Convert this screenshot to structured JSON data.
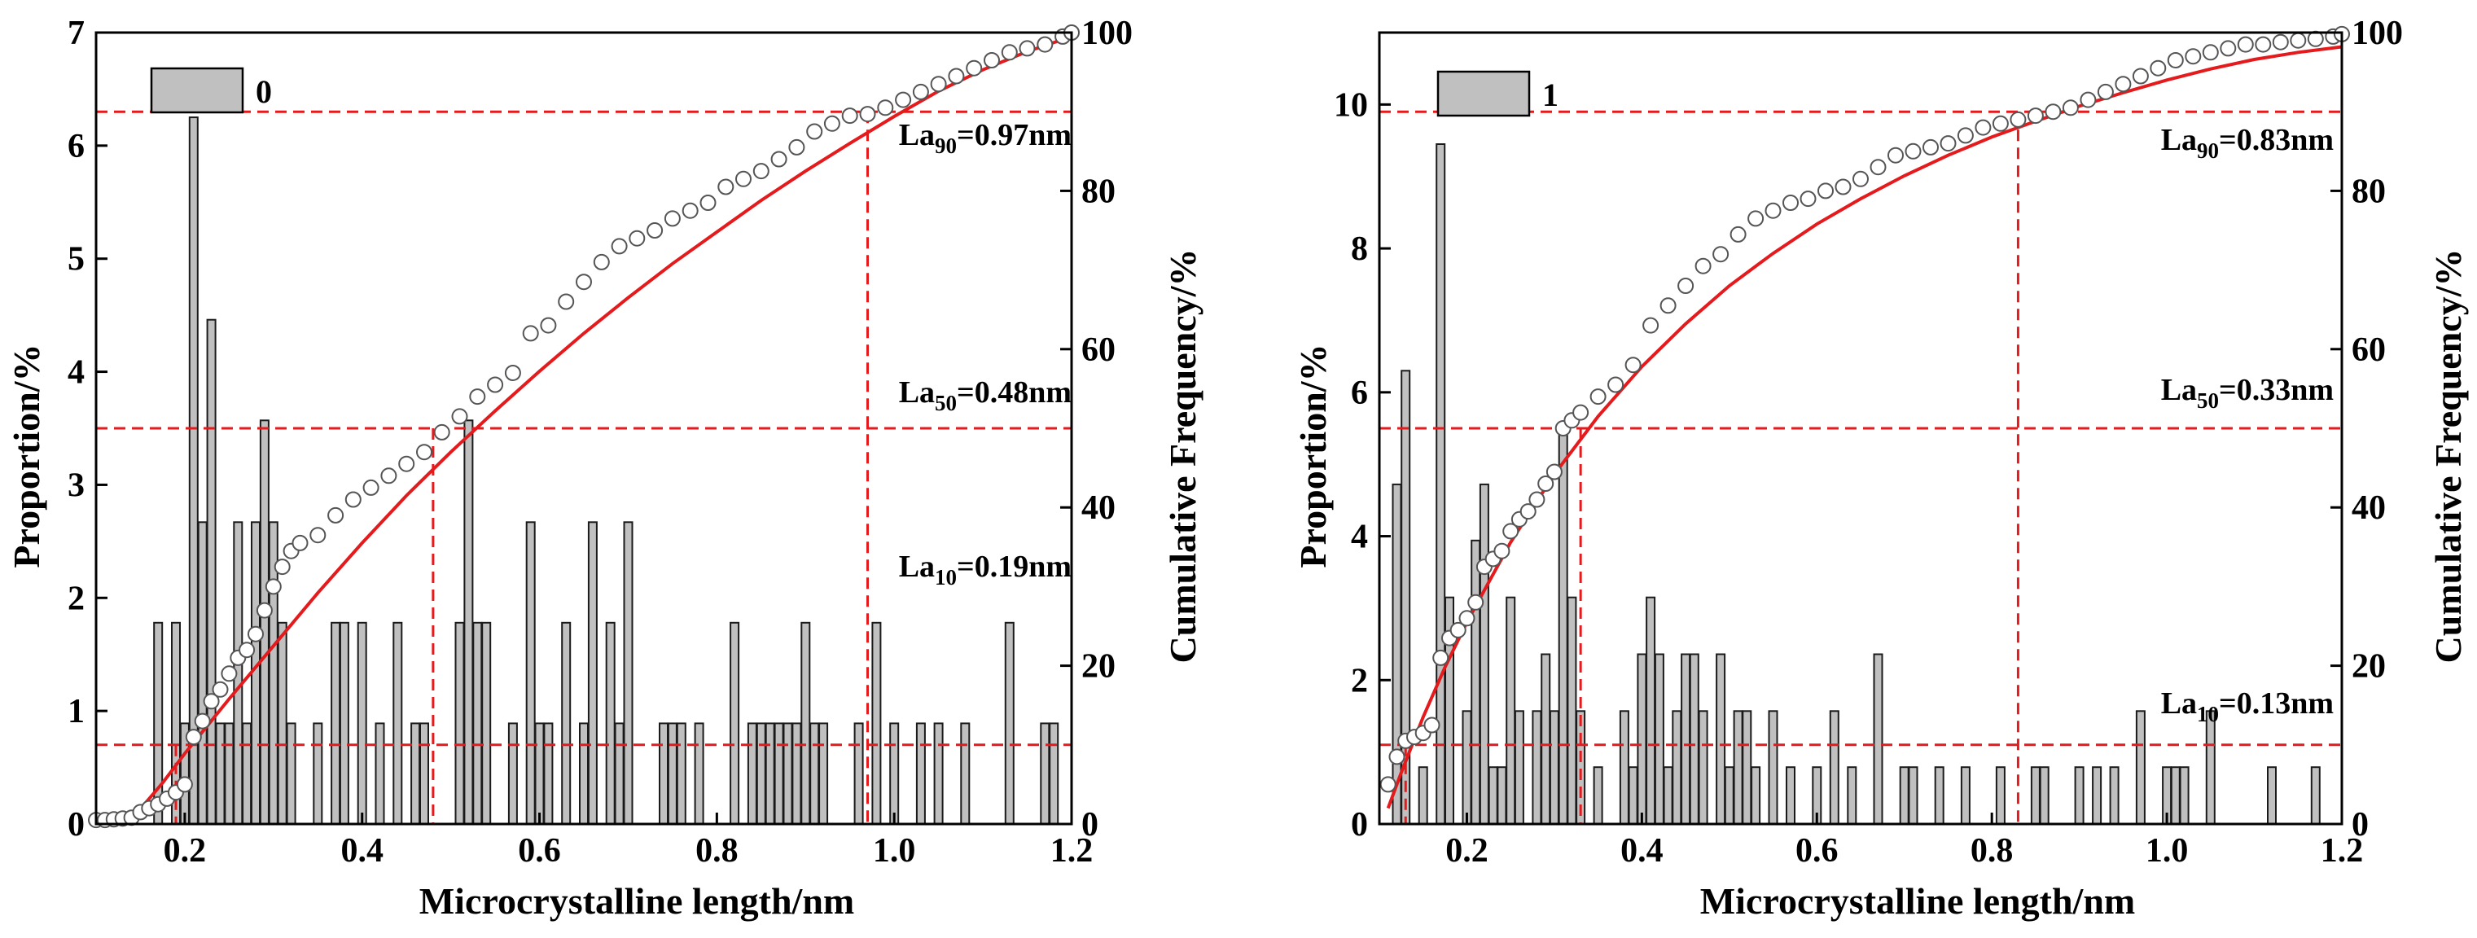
{
  "colors": {
    "bar_fill": "#c0c0c0",
    "bar_stroke": "#1a1a1a",
    "fit_line": "#e41a1c",
    "ref_line": "#e41a1c",
    "marker_fill": "#ffffff",
    "marker_stroke": "#555555"
  },
  "chart_data": [
    {
      "type": "bar",
      "legend": "0",
      "xlabel": "Microcrystalline length/nm",
      "ylabel_left": "Proportion/%",
      "ylabel_right": "Cumulative Frequency/%",
      "xlim": [
        0.1,
        1.2
      ],
      "ylim_left": [
        0,
        7
      ],
      "ylim_right": [
        0,
        100
      ],
      "x_ticks": [
        "0.2",
        "0.4",
        "0.6",
        "0.8",
        "1.0",
        "1.2"
      ],
      "y_ticks_left": [
        "0",
        "1",
        "2",
        "3",
        "4",
        "5",
        "6",
        "7"
      ],
      "y_ticks_right": [
        "0",
        "20",
        "40",
        "60",
        "80",
        "100"
      ],
      "annotations": [
        {
          "main": "La",
          "sub": "90",
          "rest": "=0.97nm",
          "x_value": 0.97,
          "y_cumulative": 90
        },
        {
          "main": "La",
          "sub": "50",
          "rest": "=0.48nm",
          "x_value": 0.48,
          "y_cumulative": 50
        },
        {
          "main": "La",
          "sub": "10",
          "rest": "=0.19nm",
          "x_value": 0.19,
          "y_cumulative": 10
        }
      ],
      "bars": [
        [
          0.17,
          1.78
        ],
        [
          0.19,
          1.78
        ],
        [
          0.2,
          0.89
        ],
        [
          0.21,
          6.25
        ],
        [
          0.22,
          2.67
        ],
        [
          0.23,
          4.46
        ],
        [
          0.24,
          0.89
        ],
        [
          0.25,
          0.89
        ],
        [
          0.26,
          2.67
        ],
        [
          0.27,
          0.89
        ],
        [
          0.28,
          2.67
        ],
        [
          0.29,
          3.57
        ],
        [
          0.3,
          2.67
        ],
        [
          0.31,
          1.78
        ],
        [
          0.32,
          0.89
        ],
        [
          0.35,
          0.89
        ],
        [
          0.37,
          1.78
        ],
        [
          0.38,
          1.78
        ],
        [
          0.4,
          1.78
        ],
        [
          0.42,
          0.89
        ],
        [
          0.44,
          1.78
        ],
        [
          0.46,
          0.89
        ],
        [
          0.47,
          0.89
        ],
        [
          0.51,
          1.78
        ],
        [
          0.52,
          3.57
        ],
        [
          0.53,
          1.78
        ],
        [
          0.54,
          1.78
        ],
        [
          0.57,
          0.89
        ],
        [
          0.59,
          2.67
        ],
        [
          0.6,
          0.89
        ],
        [
          0.61,
          0.89
        ],
        [
          0.63,
          1.78
        ],
        [
          0.65,
          0.89
        ],
        [
          0.66,
          2.67
        ],
        [
          0.68,
          1.78
        ],
        [
          0.69,
          0.89
        ],
        [
          0.7,
          2.67
        ],
        [
          0.74,
          0.89
        ],
        [
          0.75,
          0.89
        ],
        [
          0.76,
          0.89
        ],
        [
          0.78,
          0.89
        ],
        [
          0.82,
          1.78
        ],
        [
          0.84,
          0.89
        ],
        [
          0.85,
          0.89
        ],
        [
          0.86,
          0.89
        ],
        [
          0.87,
          0.89
        ],
        [
          0.88,
          0.89
        ],
        [
          0.89,
          0.89
        ],
        [
          0.9,
          1.78
        ],
        [
          0.91,
          0.89
        ],
        [
          0.92,
          0.89
        ],
        [
          0.96,
          0.89
        ],
        [
          0.98,
          1.78
        ],
        [
          1.0,
          0.89
        ],
        [
          1.03,
          0.89
        ],
        [
          1.05,
          0.89
        ],
        [
          1.08,
          0.89
        ],
        [
          1.13,
          1.78
        ],
        [
          1.17,
          0.89
        ],
        [
          1.18,
          0.89
        ]
      ],
      "cumulative_points": [
        [
          0.1,
          0.5
        ],
        [
          0.11,
          0.5
        ],
        [
          0.12,
          0.6
        ],
        [
          0.13,
          0.7
        ],
        [
          0.14,
          0.8
        ],
        [
          0.15,
          1.5
        ],
        [
          0.16,
          2.0
        ],
        [
          0.17,
          2.5
        ],
        [
          0.18,
          3.2
        ],
        [
          0.19,
          4.0
        ],
        [
          0.2,
          5.0
        ],
        [
          0.21,
          11.0
        ],
        [
          0.22,
          13.0
        ],
        [
          0.23,
          15.5
        ],
        [
          0.24,
          17.0
        ],
        [
          0.25,
          19.0
        ],
        [
          0.26,
          21.0
        ],
        [
          0.27,
          22.0
        ],
        [
          0.28,
          24.0
        ],
        [
          0.29,
          27.0
        ],
        [
          0.3,
          30.0
        ],
        [
          0.31,
          32.5
        ],
        [
          0.32,
          34.5
        ],
        [
          0.33,
          35.5
        ],
        [
          0.35,
          36.5
        ],
        [
          0.37,
          39.0
        ],
        [
          0.39,
          41.0
        ],
        [
          0.41,
          42.5
        ],
        [
          0.43,
          44.0
        ],
        [
          0.45,
          45.5
        ],
        [
          0.47,
          47.0
        ],
        [
          0.49,
          49.5
        ],
        [
          0.51,
          51.5
        ],
        [
          0.53,
          54.0
        ],
        [
          0.55,
          55.5
        ],
        [
          0.57,
          57.0
        ],
        [
          0.59,
          62.0
        ],
        [
          0.61,
          63.0
        ],
        [
          0.63,
          66.0
        ],
        [
          0.65,
          68.5
        ],
        [
          0.67,
          71.0
        ],
        [
          0.69,
          73.0
        ],
        [
          0.71,
          74.0
        ],
        [
          0.73,
          75.0
        ],
        [
          0.75,
          76.5
        ],
        [
          0.77,
          77.5
        ],
        [
          0.79,
          78.5
        ],
        [
          0.81,
          80.5
        ],
        [
          0.83,
          81.5
        ],
        [
          0.85,
          82.5
        ],
        [
          0.87,
          84.0
        ],
        [
          0.89,
          85.5
        ],
        [
          0.91,
          87.5
        ],
        [
          0.93,
          88.5
        ],
        [
          0.95,
          89.5
        ],
        [
          0.97,
          89.7
        ],
        [
          0.99,
          90.5
        ],
        [
          1.01,
          91.5
        ],
        [
          1.03,
          92.5
        ],
        [
          1.05,
          93.5
        ],
        [
          1.07,
          94.5
        ],
        [
          1.09,
          95.5
        ],
        [
          1.11,
          96.5
        ],
        [
          1.13,
          97.5
        ],
        [
          1.15,
          98.0
        ],
        [
          1.17,
          98.5
        ],
        [
          1.19,
          99.5
        ],
        [
          1.2,
          100.0
        ]
      ],
      "fit_curve": [
        [
          0.135,
          0.0
        ],
        [
          0.15,
          1.9
        ],
        [
          0.175,
          5.2
        ],
        [
          0.2,
          8.9
        ],
        [
          0.25,
          15.8
        ],
        [
          0.3,
          22.5
        ],
        [
          0.35,
          29.2
        ],
        [
          0.4,
          35.5
        ],
        [
          0.45,
          41.5
        ],
        [
          0.5,
          47.0
        ],
        [
          0.55,
          52.2
        ],
        [
          0.6,
          57.2
        ],
        [
          0.65,
          62.0
        ],
        [
          0.7,
          66.5
        ],
        [
          0.75,
          70.8
        ],
        [
          0.8,
          74.8
        ],
        [
          0.85,
          78.8
        ],
        [
          0.9,
          82.5
        ],
        [
          0.95,
          86.0
        ],
        [
          1.0,
          89.4
        ],
        [
          1.05,
          92.6
        ],
        [
          1.1,
          95.3
        ],
        [
          1.15,
          97.6
        ],
        [
          1.2,
          99.5
        ]
      ]
    },
    {
      "type": "bar",
      "legend": "1",
      "xlabel": "Microcrystalline length/nm",
      "ylabel_left": "Proportion/%",
      "ylabel_right": "Cumulative Frequency/%",
      "xlim": [
        0.1,
        1.2
      ],
      "ylim_left": [
        0,
        11
      ],
      "ylim_right": [
        0,
        100
      ],
      "x_ticks": [
        "0.2",
        "0.4",
        "0.6",
        "0.8",
        "1.0",
        "1.2"
      ],
      "y_ticks_left": [
        "0",
        "2",
        "4",
        "6",
        "8",
        "10"
      ],
      "y_ticks_right": [
        "0",
        "20",
        "40",
        "60",
        "80",
        "100"
      ],
      "annotations": [
        {
          "main": "La",
          "sub": "90",
          "rest": "=0.83nm",
          "x_value": 0.83,
          "y_cumulative": 90
        },
        {
          "main": "La",
          "sub": "50",
          "rest": "=0.33nm",
          "x_value": 0.33,
          "y_cumulative": 50
        },
        {
          "main": "La",
          "sub": "10",
          "rest": "=0.13nm",
          "x_value": 0.13,
          "y_cumulative": 10
        }
      ],
      "bars": [
        [
          0.12,
          4.72
        ],
        [
          0.13,
          6.3
        ],
        [
          0.15,
          0.79
        ],
        [
          0.17,
          9.45
        ],
        [
          0.18,
          3.15
        ],
        [
          0.2,
          1.57
        ],
        [
          0.21,
          3.94
        ],
        [
          0.22,
          4.72
        ],
        [
          0.23,
          0.79
        ],
        [
          0.24,
          0.79
        ],
        [
          0.25,
          3.15
        ],
        [
          0.26,
          1.57
        ],
        [
          0.28,
          1.57
        ],
        [
          0.29,
          2.36
        ],
        [
          0.3,
          1.57
        ],
        [
          0.31,
          5.51
        ],
        [
          0.32,
          3.15
        ],
        [
          0.33,
          1.57
        ],
        [
          0.35,
          0.79
        ],
        [
          0.38,
          1.57
        ],
        [
          0.39,
          0.79
        ],
        [
          0.4,
          2.36
        ],
        [
          0.41,
          3.15
        ],
        [
          0.42,
          2.36
        ],
        [
          0.43,
          0.79
        ],
        [
          0.44,
          1.57
        ],
        [
          0.45,
          2.36
        ],
        [
          0.46,
          2.36
        ],
        [
          0.47,
          1.57
        ],
        [
          0.49,
          2.36
        ],
        [
          0.5,
          0.79
        ],
        [
          0.51,
          1.57
        ],
        [
          0.52,
          1.57
        ],
        [
          0.53,
          0.79
        ],
        [
          0.55,
          1.57
        ],
        [
          0.57,
          0.79
        ],
        [
          0.6,
          0.79
        ],
        [
          0.62,
          1.57
        ],
        [
          0.64,
          0.79
        ],
        [
          0.67,
          2.36
        ],
        [
          0.7,
          0.79
        ],
        [
          0.71,
          0.79
        ],
        [
          0.74,
          0.79
        ],
        [
          0.77,
          0.79
        ],
        [
          0.81,
          0.79
        ],
        [
          0.85,
          0.79
        ],
        [
          0.86,
          0.79
        ],
        [
          0.9,
          0.79
        ],
        [
          0.92,
          0.79
        ],
        [
          0.94,
          0.79
        ],
        [
          0.97,
          1.57
        ],
        [
          1.0,
          0.79
        ],
        [
          1.01,
          0.79
        ],
        [
          1.02,
          0.79
        ],
        [
          1.05,
          1.57
        ],
        [
          1.12,
          0.79
        ],
        [
          1.17,
          0.79
        ]
      ],
      "cumulative_points": [
        [
          0.11,
          5.0
        ],
        [
          0.12,
          8.5
        ],
        [
          0.13,
          10.5
        ],
        [
          0.14,
          11.0
        ],
        [
          0.15,
          11.5
        ],
        [
          0.16,
          12.5
        ],
        [
          0.17,
          21.0
        ],
        [
          0.18,
          23.5
        ],
        [
          0.19,
          24.5
        ],
        [
          0.2,
          26.0
        ],
        [
          0.21,
          28.0
        ],
        [
          0.22,
          32.5
        ],
        [
          0.23,
          33.5
        ],
        [
          0.24,
          34.5
        ],
        [
          0.25,
          37.0
        ],
        [
          0.26,
          38.5
        ],
        [
          0.27,
          39.5
        ],
        [
          0.28,
          41.0
        ],
        [
          0.29,
          43.0
        ],
        [
          0.3,
          44.5
        ],
        [
          0.31,
          50.0
        ],
        [
          0.32,
          51.0
        ],
        [
          0.33,
          52.0
        ],
        [
          0.35,
          54.0
        ],
        [
          0.37,
          55.5
        ],
        [
          0.39,
          58.0
        ],
        [
          0.41,
          63.0
        ],
        [
          0.43,
          65.5
        ],
        [
          0.45,
          68.0
        ],
        [
          0.47,
          70.5
        ],
        [
          0.49,
          72.0
        ],
        [
          0.51,
          74.5
        ],
        [
          0.53,
          76.5
        ],
        [
          0.55,
          77.5
        ],
        [
          0.57,
          78.5
        ],
        [
          0.59,
          79.0
        ],
        [
          0.61,
          80.0
        ],
        [
          0.63,
          80.5
        ],
        [
          0.65,
          81.5
        ],
        [
          0.67,
          83.0
        ],
        [
          0.69,
          84.5
        ],
        [
          0.71,
          85.0
        ],
        [
          0.73,
          85.5
        ],
        [
          0.75,
          86.0
        ],
        [
          0.77,
          87.0
        ],
        [
          0.79,
          88.0
        ],
        [
          0.81,
          88.5
        ],
        [
          0.83,
          89.0
        ],
        [
          0.85,
          89.5
        ],
        [
          0.87,
          90.0
        ],
        [
          0.89,
          90.5
        ],
        [
          0.91,
          91.5
        ],
        [
          0.93,
          92.5
        ],
        [
          0.95,
          93.5
        ],
        [
          0.97,
          94.5
        ],
        [
          0.99,
          95.5
        ],
        [
          1.01,
          96.5
        ],
        [
          1.03,
          97.0
        ],
        [
          1.05,
          97.5
        ],
        [
          1.07,
          98.0
        ],
        [
          1.09,
          98.5
        ],
        [
          1.11,
          98.5
        ],
        [
          1.13,
          98.8
        ],
        [
          1.15,
          99.0
        ],
        [
          1.17,
          99.2
        ],
        [
          1.19,
          99.5
        ],
        [
          1.2,
          99.8
        ]
      ],
      "fit_curve": [
        [
          0.11,
          2.0
        ],
        [
          0.125,
          6.5
        ],
        [
          0.15,
          13.5
        ],
        [
          0.175,
          19.8
        ],
        [
          0.2,
          25.5
        ],
        [
          0.25,
          35.6
        ],
        [
          0.3,
          44.2
        ],
        [
          0.35,
          51.5
        ],
        [
          0.4,
          57.8
        ],
        [
          0.45,
          63.2
        ],
        [
          0.5,
          68.0
        ],
        [
          0.55,
          72.1
        ],
        [
          0.6,
          75.8
        ],
        [
          0.65,
          79.0
        ],
        [
          0.7,
          81.9
        ],
        [
          0.75,
          84.5
        ],
        [
          0.8,
          86.8
        ],
        [
          0.85,
          88.8
        ],
        [
          0.9,
          90.7
        ],
        [
          0.95,
          92.4
        ],
        [
          1.0,
          94.0
        ],
        [
          1.05,
          95.4
        ],
        [
          1.1,
          96.6
        ],
        [
          1.15,
          97.5
        ],
        [
          1.2,
          98.2
        ]
      ]
    }
  ]
}
